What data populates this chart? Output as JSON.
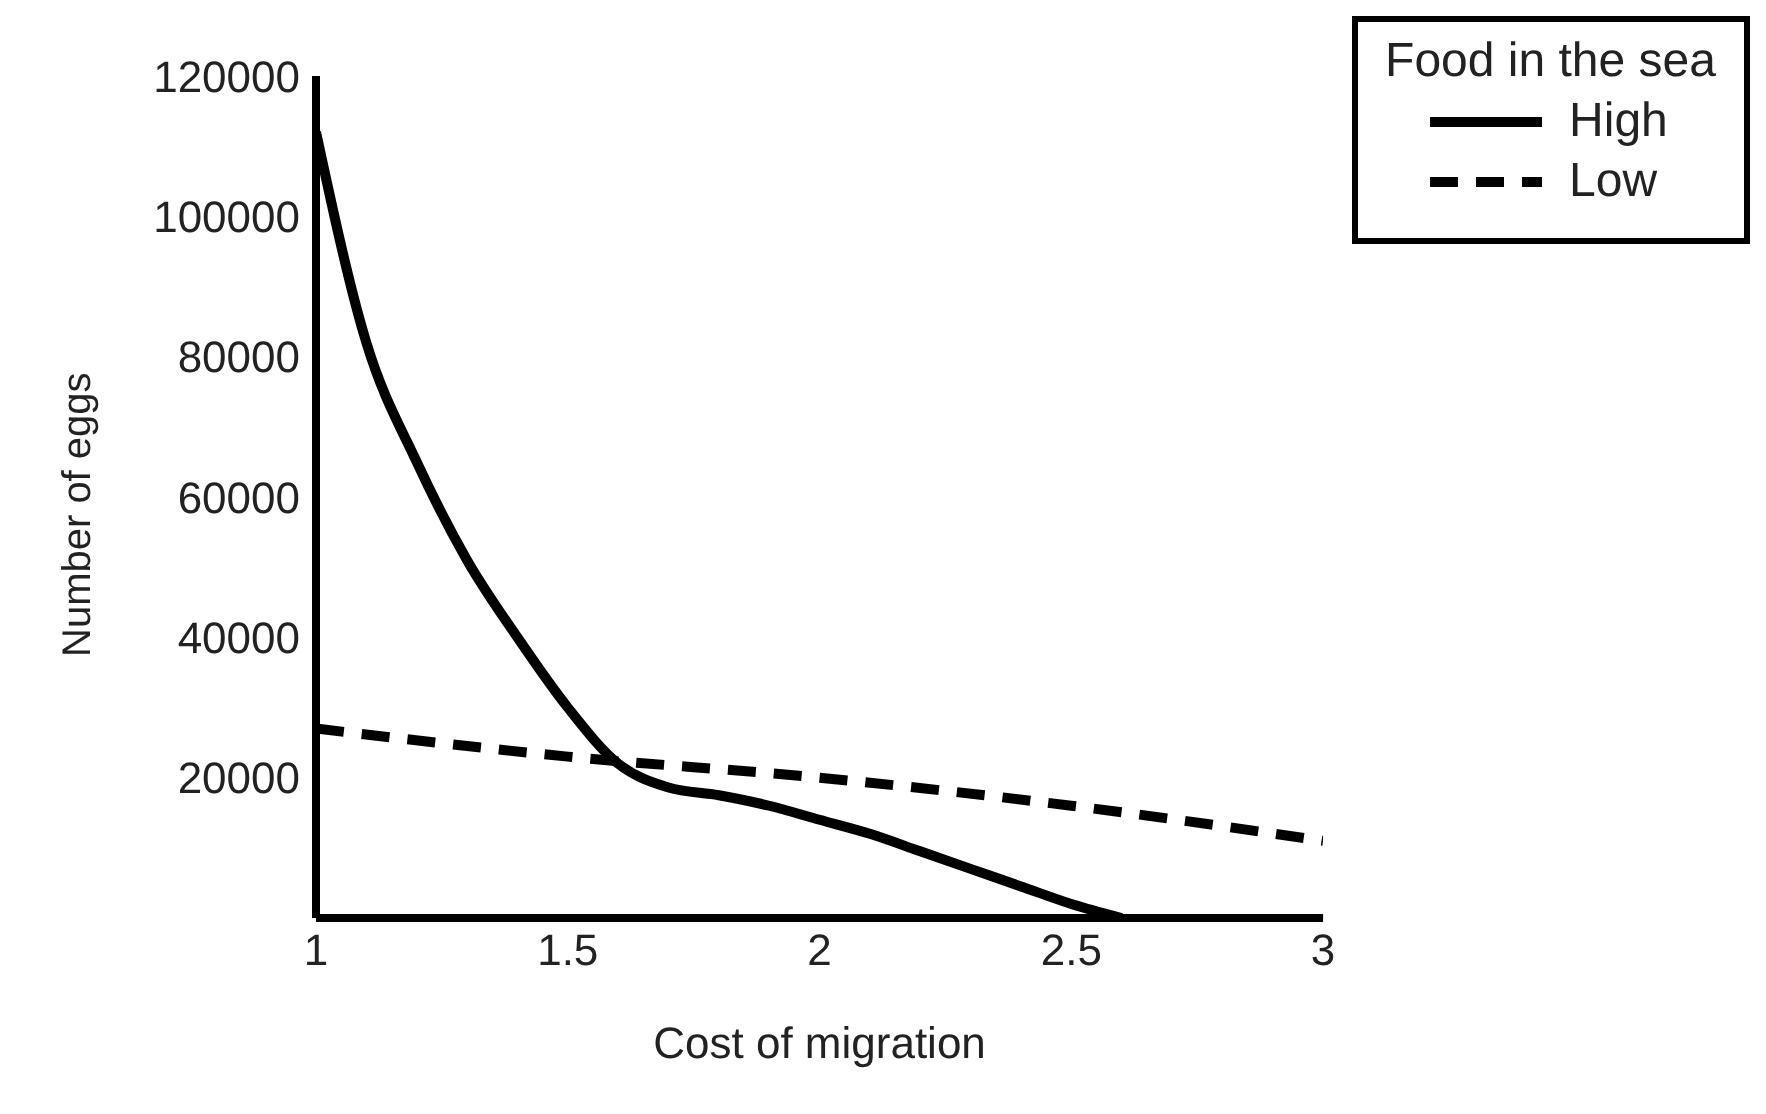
{
  "chart_data": {
    "type": "line",
    "xlabel": "Cost of migration",
    "ylabel": "Number of eggs",
    "legend_title": "Food in the sea",
    "legend": "top right",
    "grid": false,
    "xlim": [
      1,
      3
    ],
    "xticks": [
      1,
      1.5,
      2,
      2.5,
      3
    ],
    "ylim": [
      0,
      120000
    ],
    "yticks": [
      20000,
      40000,
      60000,
      80000,
      100000,
      120000
    ],
    "series": [
      {
        "name": "High",
        "color": "#000000",
        "line_style": "solid",
        "x": [
          1,
          1.1,
          1.2,
          1.3,
          1.4,
          1.5,
          1.6,
          1.7,
          1.8,
          1.9,
          2,
          2.1,
          2.2,
          2.3,
          2.4,
          2.5,
          2.6
        ],
        "values": [
          112000,
          82000,
          65000,
          51000,
          40000,
          30000,
          22000,
          18600,
          17500,
          16000,
          14000,
          12000,
          9500,
          7000,
          4500,
          2000,
          0
        ]
      },
      {
        "name": "Low",
        "color": "#000000",
        "line_style": "dashed",
        "x": [
          1,
          1.5,
          2,
          2.5,
          3
        ],
        "values": [
          27000,
          23000,
          20000,
          16000,
          11000
        ]
      }
    ]
  }
}
